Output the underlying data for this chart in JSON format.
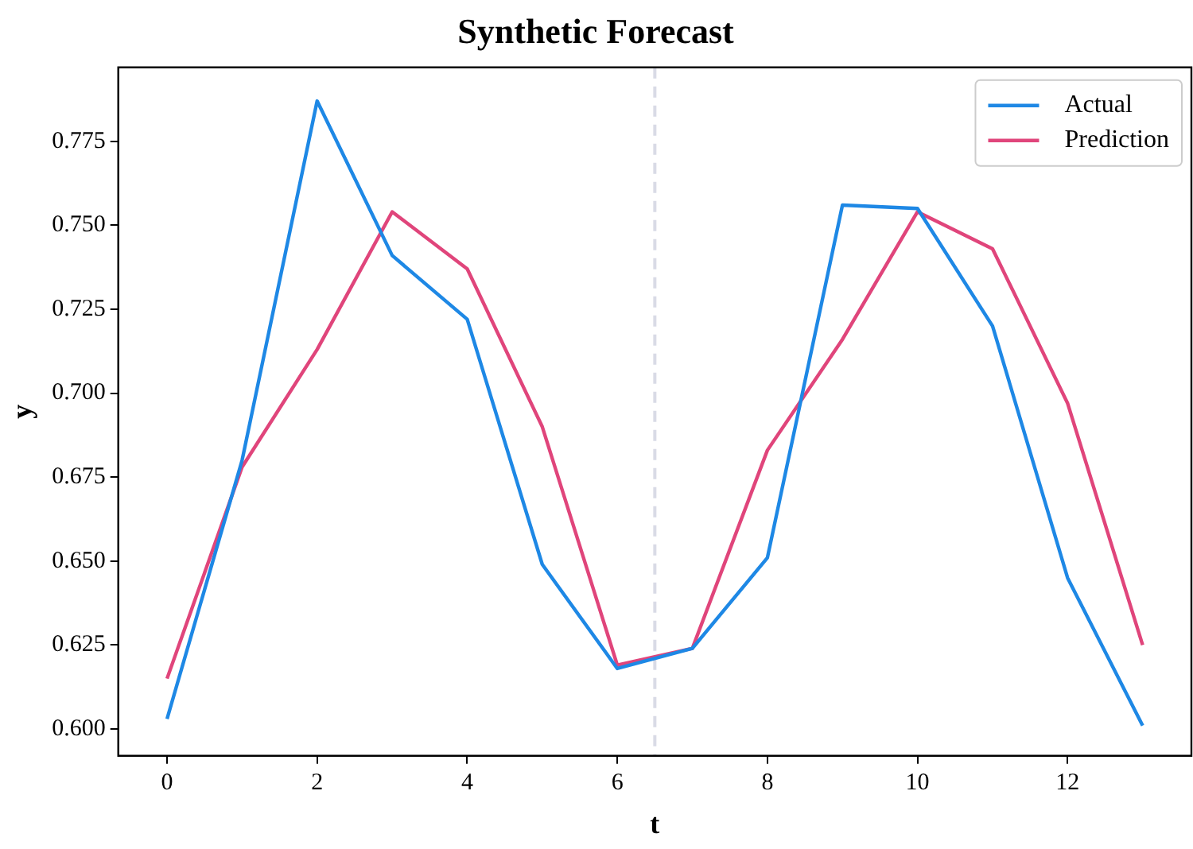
{
  "chart_data": {
    "type": "line",
    "title": "Synthetic Forecast",
    "xlabel": "t",
    "ylabel": "y",
    "x": [
      0,
      1,
      2,
      3,
      4,
      5,
      6,
      7,
      8,
      9,
      10,
      11,
      12,
      13
    ],
    "series": [
      {
        "name": "Actual",
        "color": "#1e88e5",
        "values": [
          0.603,
          0.68,
          0.787,
          0.741,
          0.722,
          0.649,
          0.618,
          0.624,
          0.651,
          0.756,
          0.755,
          0.72,
          0.645,
          0.601
        ]
      },
      {
        "name": "Prediction",
        "color": "#e0457b",
        "values": [
          0.615,
          0.678,
          0.713,
          0.754,
          0.737,
          0.69,
          0.619,
          0.624,
          0.683,
          0.716,
          0.754,
          0.743,
          0.697,
          0.625
        ]
      }
    ],
    "xlim": [
      -0.65,
      13.65
    ],
    "ylim": [
      0.592,
      0.797
    ],
    "xticks": [
      0,
      2,
      4,
      6,
      8,
      10,
      12
    ],
    "yticks": [
      {
        "value": 0.6,
        "label": "0.600"
      },
      {
        "value": 0.625,
        "label": "0.625"
      },
      {
        "value": 0.65,
        "label": "0.650"
      },
      {
        "value": 0.675,
        "label": "0.675"
      },
      {
        "value": 0.7,
        "label": "0.700"
      },
      {
        "value": 0.725,
        "label": "0.725"
      },
      {
        "value": 0.75,
        "label": "0.750"
      },
      {
        "value": 0.775,
        "label": "0.775"
      }
    ],
    "ref_lines": [
      {
        "axis": "x",
        "value": 6.5,
        "color": "#d9dbe6",
        "line_style": "dashed"
      }
    ],
    "grid": false,
    "legend": "top right",
    "marker": "none",
    "line_style": "solid"
  }
}
